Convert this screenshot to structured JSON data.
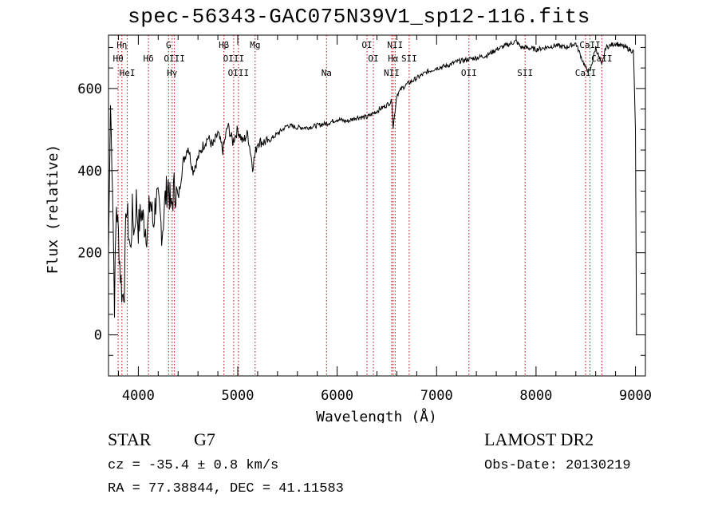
{
  "chart_data": {
    "type": "line",
    "title": "spec-56343-GAC075N39V1_sp12-116.fits",
    "xlabel": "Wavelength (Å)",
    "ylabel": "Flux (relative)",
    "xlim": [
      3700,
      9100
    ],
    "ylim": [
      -100,
      730
    ],
    "xticks": [
      4000,
      5000,
      6000,
      7000,
      8000,
      9000
    ],
    "yticks": [
      0,
      200,
      400,
      600
    ],
    "series": [
      {
        "name": "flux",
        "x": [
          3700,
          3720,
          3740,
          3760,
          3780,
          3800,
          3820,
          3840,
          3860,
          3880,
          3900,
          3920,
          3940,
          3960,
          3980,
          4000,
          4030,
          4060,
          4090,
          4120,
          4150,
          4180,
          4210,
          4240,
          4270,
          4300,
          4330,
          4360,
          4400,
          4450,
          4500,
          4550,
          4600,
          4650,
          4700,
          4750,
          4800,
          4850,
          4900,
          4950,
          5000,
          5050,
          5100,
          5150,
          5200,
          5300,
          5400,
          5500,
          5600,
          5700,
          5800,
          5900,
          6000,
          6100,
          6200,
          6300,
          6400,
          6500,
          6550,
          6563,
          6600,
          6650,
          6700,
          6800,
          6900,
          7000,
          7100,
          7200,
          7300,
          7400,
          7500,
          7600,
          7700,
          7800,
          7850,
          7900,
          8000,
          8100,
          8200,
          8300,
          8400,
          8498,
          8542,
          8600,
          8662,
          8700,
          8800,
          8900,
          8980,
          9000,
          9010
        ],
        "values": [
          200,
          560,
          380,
          80,
          320,
          240,
          150,
          90,
          120,
          320,
          260,
          200,
          300,
          250,
          330,
          260,
          300,
          270,
          250,
          330,
          270,
          340,
          300,
          250,
          330,
          370,
          300,
          360,
          330,
          420,
          460,
          400,
          430,
          460,
          480,
          460,
          490,
          450,
          510,
          470,
          500,
          470,
          490,
          410,
          470,
          470,
          490,
          510,
          505,
          505,
          510,
          515,
          525,
          520,
          530,
          530,
          545,
          560,
          570,
          505,
          585,
          600,
          610,
          625,
          640,
          650,
          655,
          665,
          670,
          675,
          680,
          695,
          705,
          715,
          700,
          700,
          695,
          700,
          705,
          700,
          710,
          650,
          640,
          700,
          655,
          700,
          710,
          700,
          690,
          500,
          0
        ]
      }
    ],
    "line_marks": [
      {
        "label": "Hη",
        "wavelength": 3835
      },
      {
        "label": "Hθ",
        "wavelength": 3797
      },
      {
        "label": "HeI",
        "wavelength": 3889
      },
      {
        "label": "Hδ",
        "wavelength": 4102
      },
      {
        "label": "G",
        "wavelength": 4304
      },
      {
        "label": "OIII",
        "wavelength": 4363
      },
      {
        "label": "Hγ",
        "wavelength": 4340
      },
      {
        "label": "Hβ",
        "wavelength": 4861
      },
      {
        "label": "OIII",
        "wavelength": 4959
      },
      {
        "label": "OIII",
        "wavelength": 5007
      },
      {
        "label": "Mg",
        "wavelength": 5175
      },
      {
        "label": "Na",
        "wavelength": 5893
      },
      {
        "label": "OI",
        "wavelength": 6300
      },
      {
        "label": "OI",
        "wavelength": 6364
      },
      {
        "label": "NII",
        "wavelength": 6583
      },
      {
        "label": "Hα",
        "wavelength": 6563
      },
      {
        "label": "NII",
        "wavelength": 6548
      },
      {
        "label": "SII",
        "wavelength": 6724
      },
      {
        "label": "OII",
        "wavelength": 7325
      },
      {
        "label": "SII",
        "wavelength": 7890
      },
      {
        "label": "CaII",
        "wavelength": 8542
      },
      {
        "label": "CaII",
        "wavelength": 8498
      },
      {
        "label": "CaII",
        "wavelength": 8662
      }
    ]
  },
  "info": {
    "object_class": "STAR",
    "spectral_type": "G7",
    "survey": "LAMOST DR2",
    "redshift": "cz = -35.4 ± 0.8 km/s",
    "obs_date": "Obs-Date: 20130219",
    "coordinates": "RA =  77.38844, DEC =  41.11583"
  }
}
